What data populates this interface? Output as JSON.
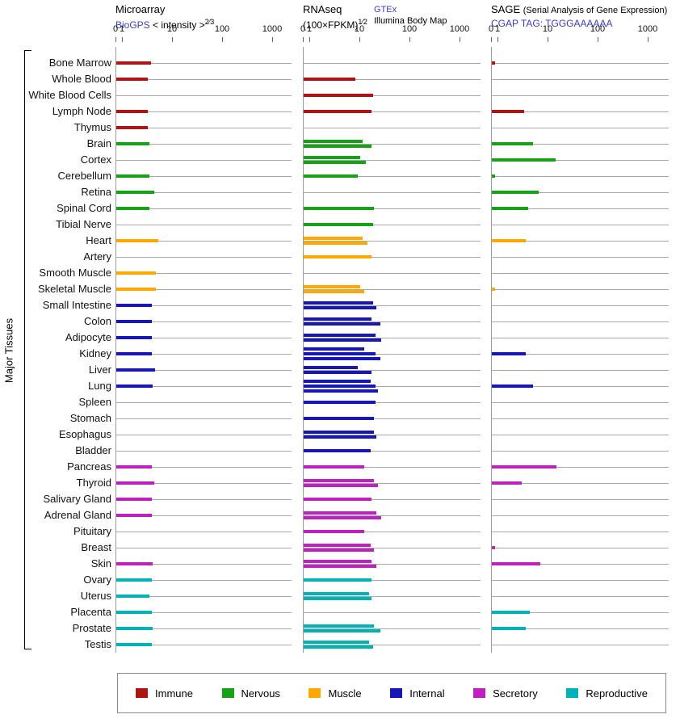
{
  "colors": {
    "Immune": "#AF1414",
    "Nervous": "#15A315",
    "Muscle": "#FFA800",
    "Internal": "#1717B8",
    "Secretory": "#C020C0",
    "Reproductive": "#00B3B8",
    "row_line": "#AAAAAA",
    "axis_line": "#9A9A9A",
    "link": "#3C3CC8"
  },
  "header": {
    "microarray": {
      "title": "Microarray",
      "link": "BioGPS",
      "note_pre": "< intensity >",
      "note_sup": "2⁄3"
    },
    "rnaseq": {
      "title": "RNAseq",
      "note_pre": "(100×FPKM)",
      "note_sup": "1⁄2",
      "link": "GTEx",
      "link2": "Illumina Body Map"
    },
    "sage": {
      "title": "SAGE",
      "subtitle": "(Serial Analysis of Gene Expression)",
      "link": "CGAP",
      "tag": "TAG: TGGGAAAAAA"
    }
  },
  "y_axis_label": "Major Tissues",
  "legend": [
    {
      "label": "Immune"
    },
    {
      "label": "Nervous"
    },
    {
      "label": "Muscle"
    },
    {
      "label": "Internal"
    },
    {
      "label": "Secretory"
    },
    {
      "label": "Reproductive"
    }
  ],
  "chart_data": {
    "type": "bar",
    "orientation": "horizontal",
    "x_scale": "log",
    "x_ticks": [
      0,
      1,
      10,
      100,
      1000
    ],
    "x_range": [
      0,
      1000
    ],
    "panels": [
      {
        "key": "microarray",
        "title": "Microarray",
        "source": "BioGPS",
        "transform": "< intensity >^(2/3)"
      },
      {
        "key": "rnaseq",
        "title": "RNAseq",
        "sources": [
          "GTEx",
          "Illumina Body Map"
        ],
        "transform": "(100×FPKM)^(1/2)"
      },
      {
        "key": "sage",
        "title": "SAGE (Serial Analysis of Gene Expression)",
        "source": "CGAP",
        "tag": "TGGGAAAAAA"
      }
    ],
    "groups": [
      "Immune",
      "Nervous",
      "Muscle",
      "Internal",
      "Secretory",
      "Reproductive"
    ],
    "tissues": [
      {
        "name": "Bone Marrow",
        "group": "Immune",
        "microarray": [
          3.6
        ],
        "rnaseq": [],
        "sage": [
          0.5
        ]
      },
      {
        "name": "Whole Blood",
        "group": "Immune",
        "microarray": [
          3.2
        ],
        "rnaseq": [
          8
        ],
        "sage": []
      },
      {
        "name": "White Blood Cells",
        "group": "Immune",
        "microarray": [],
        "rnaseq": [
          18
        ],
        "sage": []
      },
      {
        "name": "Lymph Node",
        "group": "Immune",
        "microarray": [
          3.2
        ],
        "rnaseq": [
          17
        ],
        "sage": [
          3.3
        ]
      },
      {
        "name": "Thymus",
        "group": "Immune",
        "microarray": [
          3.2
        ],
        "rnaseq": [],
        "sage": []
      },
      {
        "name": "Brain",
        "group": "Nervous",
        "microarray": [
          3.4
        ],
        "rnaseq": [
          11,
          17
        ],
        "sage": [
          5
        ]
      },
      {
        "name": "Cortex",
        "group": "Nervous",
        "microarray": [],
        "rnaseq": [
          10,
          13
        ],
        "sage": [
          14
        ]
      },
      {
        "name": "Cerebellum",
        "group": "Nervous",
        "microarray": [
          3.4
        ],
        "rnaseq": [
          9
        ],
        "sage": [
          0.5
        ]
      },
      {
        "name": "Retina",
        "group": "Nervous",
        "microarray": [
          4.2
        ],
        "rnaseq": [],
        "sage": [
          6.5
        ]
      },
      {
        "name": "Spinal Cord",
        "group": "Nervous",
        "microarray": [
          3.4
        ],
        "rnaseq": [
          19
        ],
        "sage": [
          4
        ]
      },
      {
        "name": "Tibial Nerve",
        "group": "Nervous",
        "microarray": [],
        "rnaseq": [
          18
        ],
        "sage": []
      },
      {
        "name": "Heart",
        "group": "Muscle",
        "microarray": [
          5.2
        ],
        "rnaseq": [
          11,
          14
        ],
        "sage": [
          3.5
        ]
      },
      {
        "name": "Artery",
        "group": "Muscle",
        "microarray": [],
        "rnaseq": [
          17
        ],
        "sage": []
      },
      {
        "name": "Smooth Muscle",
        "group": "Muscle",
        "microarray": [
          4.6
        ],
        "rnaseq": [],
        "sage": []
      },
      {
        "name": "Skeletal Muscle",
        "group": "Muscle",
        "microarray": [
          4.6
        ],
        "rnaseq": [
          10,
          12
        ],
        "sage": [
          0.5
        ]
      },
      {
        "name": "Small Intestine",
        "group": "Internal",
        "microarray": [
          3.8
        ],
        "rnaseq": [
          18,
          21
        ],
        "sage": []
      },
      {
        "name": "Colon",
        "group": "Internal",
        "microarray": [
          3.8
        ],
        "rnaseq": [
          17,
          25
        ],
        "sage": []
      },
      {
        "name": "Adipocyte",
        "group": "Internal",
        "microarray": [
          3.8
        ],
        "rnaseq": [
          20,
          26
        ],
        "sage": []
      },
      {
        "name": "Kidney",
        "group": "Internal",
        "microarray": [
          3.8
        ],
        "rnaseq": [
          12,
          20,
          25
        ],
        "sage": [
          3.5
        ]
      },
      {
        "name": "Liver",
        "group": "Internal",
        "microarray": [
          4.4
        ],
        "rnaseq": [
          9,
          17
        ],
        "sage": []
      },
      {
        "name": "Lung",
        "group": "Internal",
        "microarray": [
          4.0
        ],
        "rnaseq": [
          16,
          20,
          23
        ],
        "sage": [
          5
        ]
      },
      {
        "name": "Spleen",
        "group": "Internal",
        "microarray": [],
        "rnaseq": [
          20
        ],
        "sage": []
      },
      {
        "name": "Stomach",
        "group": "Internal",
        "microarray": [],
        "rnaseq": [
          19
        ],
        "sage": []
      },
      {
        "name": "Esophagus",
        "group": "Internal",
        "microarray": [],
        "rnaseq": [
          19,
          21
        ],
        "sage": []
      },
      {
        "name": "Bladder",
        "group": "Internal",
        "microarray": [],
        "rnaseq": [
          16
        ],
        "sage": []
      },
      {
        "name": "Pancreas",
        "group": "Secretory",
        "microarray": [
          3.8
        ],
        "rnaseq": [
          12
        ],
        "sage": [
          14.5
        ]
      },
      {
        "name": "Thyroid",
        "group": "Secretory",
        "microarray": [
          4.2
        ],
        "rnaseq": [
          19,
          23
        ],
        "sage": [
          2.9
        ]
      },
      {
        "name": "Salivary Gland",
        "group": "Secretory",
        "microarray": [
          3.8
        ],
        "rnaseq": [
          17
        ],
        "sage": []
      },
      {
        "name": "Adrenal Gland",
        "group": "Secretory",
        "microarray": [
          3.8
        ],
        "rnaseq": [
          21,
          26
        ],
        "sage": []
      },
      {
        "name": "Pituitary",
        "group": "Secretory",
        "microarray": [],
        "rnaseq": [
          12
        ],
        "sage": []
      },
      {
        "name": "Breast",
        "group": "Secretory",
        "microarray": [],
        "rnaseq": [
          16,
          19
        ],
        "sage": [
          0.5
        ]
      },
      {
        "name": "Skin",
        "group": "Secretory",
        "microarray": [
          4.0
        ],
        "rnaseq": [
          17,
          21
        ],
        "sage": [
          7
        ]
      },
      {
        "name": "Ovary",
        "group": "Reproductive",
        "microarray": [
          3.8
        ],
        "rnaseq": [
          17
        ],
        "sage": []
      },
      {
        "name": "Uterus",
        "group": "Reproductive",
        "microarray": [
          3.4
        ],
        "rnaseq": [
          15,
          17
        ],
        "sage": []
      },
      {
        "name": "Placenta",
        "group": "Reproductive",
        "microarray": [
          3.8
        ],
        "rnaseq": [],
        "sage": [
          4.2
        ]
      },
      {
        "name": "Prostate",
        "group": "Reproductive",
        "microarray": [
          4.0
        ],
        "rnaseq": [
          19,
          25
        ],
        "sage": [
          3.5
        ]
      },
      {
        "name": "Testis",
        "group": "Reproductive",
        "microarray": [
          3.8
        ],
        "rnaseq": [
          15,
          18
        ],
        "sage": []
      }
    ]
  }
}
